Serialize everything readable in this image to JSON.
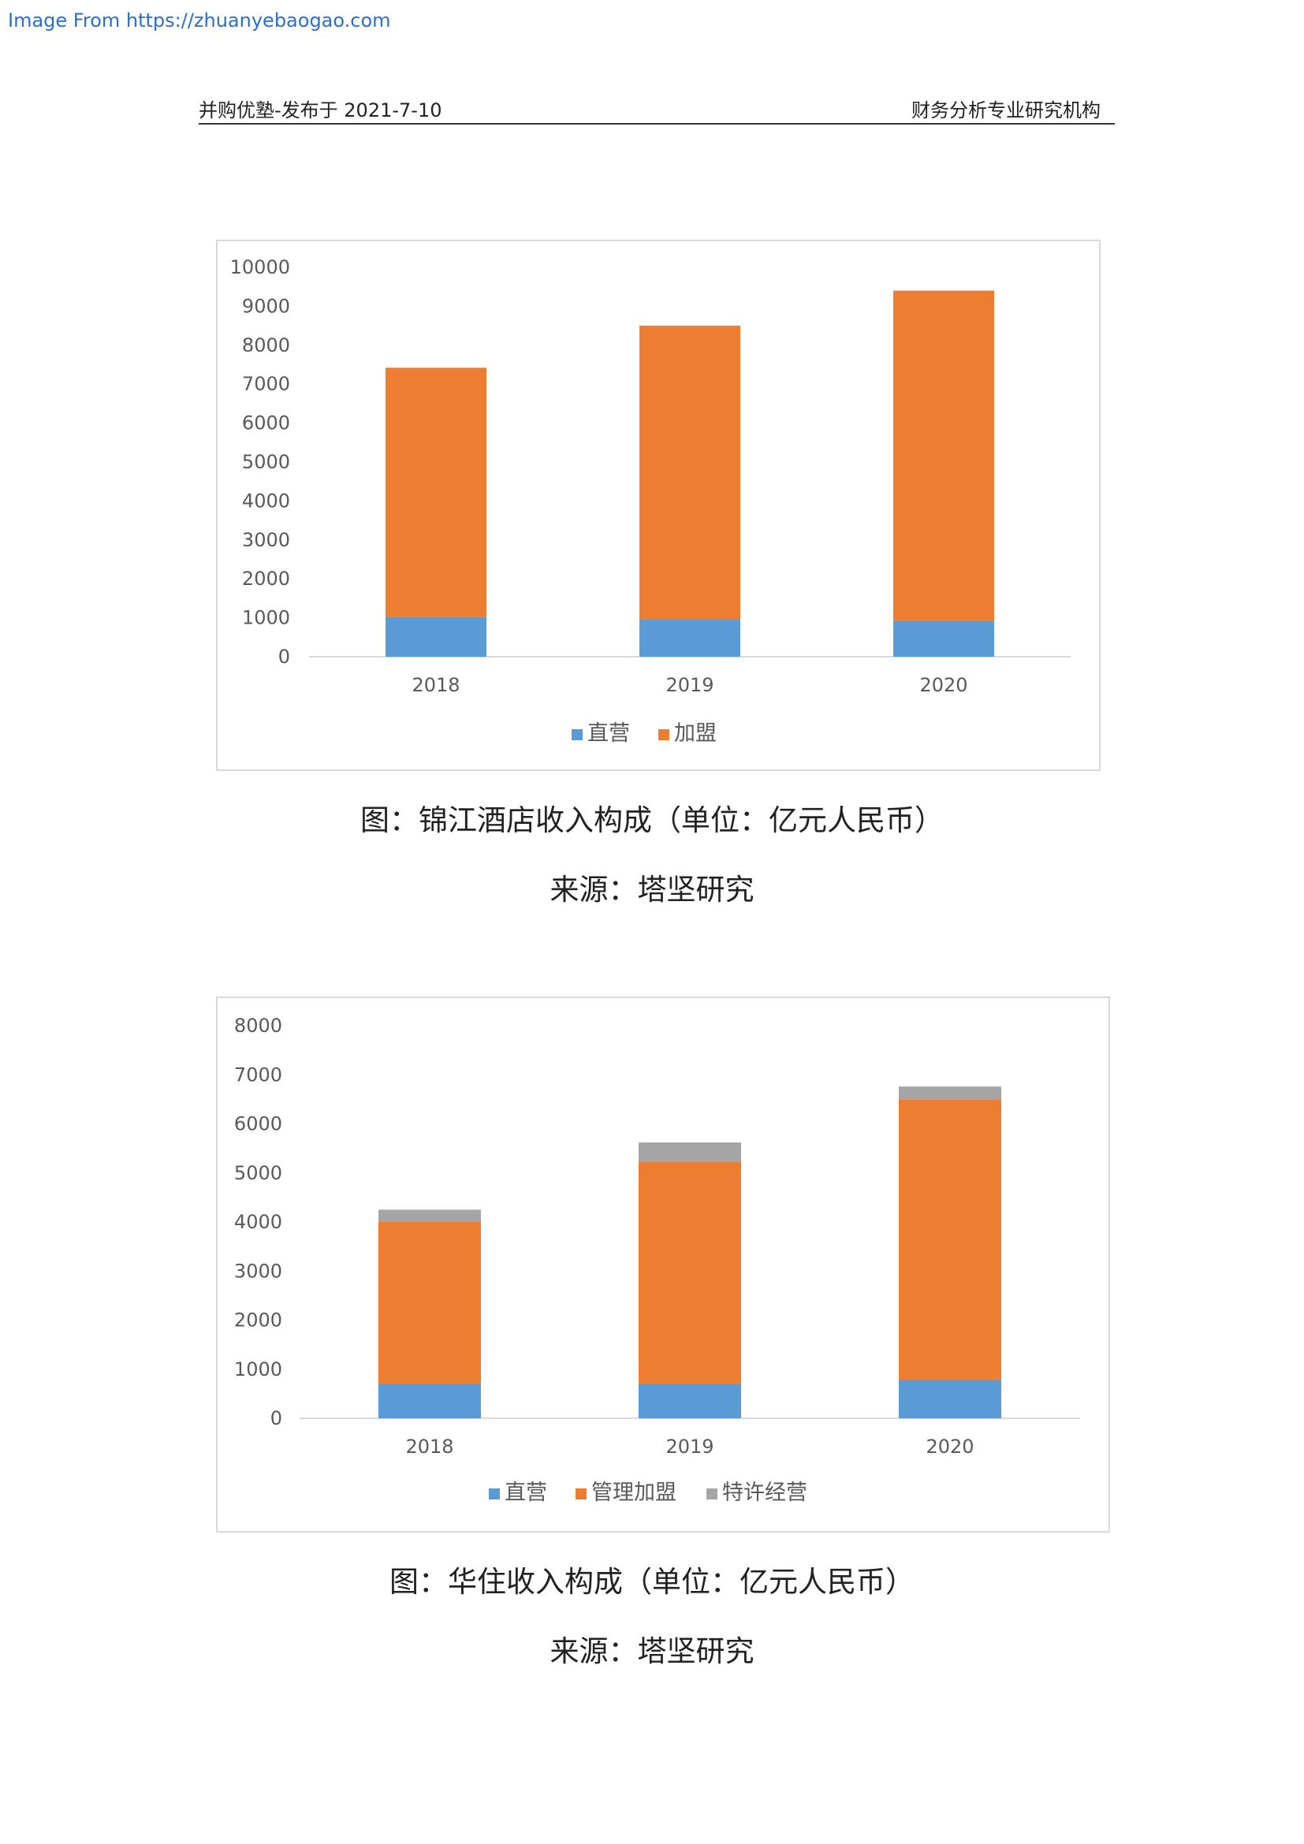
{
  "source_link": "Image From https://zhuanyebaogao.com",
  "header": {
    "left": "并购优塾-发布于 2021-7-10",
    "right": "财务分析专业研究机构"
  },
  "charts": [
    {
      "caption": "图：锦江酒店收入构成（单位：亿元人民币）",
      "source": "来源：塔坚研究"
    },
    {
      "caption": "图：华住收入构成（单位：亿元人民币）",
      "source": "来源：塔坚研究"
    }
  ],
  "chart_data": [
    {
      "type": "bar",
      "stacked": true,
      "categories": [
        "2018",
        "2019",
        "2020"
      ],
      "series": [
        {
          "name": "直营",
          "values": [
            1020,
            970,
            920
          ],
          "color": "#5b9bd5"
        },
        {
          "name": "加盟",
          "values": [
            6400,
            7530,
            8480
          ],
          "color": "#ed7d31"
        }
      ],
      "ylim": [
        0,
        10000
      ],
      "yticks": [
        0,
        1000,
        2000,
        3000,
        4000,
        5000,
        6000,
        7000,
        8000,
        9000,
        10000
      ],
      "legend": "bottom",
      "grid": false
    },
    {
      "type": "bar",
      "stacked": true,
      "categories": [
        "2018",
        "2019",
        "2020"
      ],
      "series": [
        {
          "name": "直营",
          "values": [
            700,
            700,
            780
          ],
          "color": "#5b9bd5"
        },
        {
          "name": "管理加盟",
          "values": [
            3300,
            4520,
            5720
          ],
          "color": "#ed7d31"
        },
        {
          "name": "特许经营",
          "values": [
            250,
            400,
            260
          ],
          "color": "#a5a5a5"
        }
      ],
      "ylim": [
        0,
        8000
      ],
      "yticks": [
        0,
        1000,
        2000,
        3000,
        4000,
        5000,
        6000,
        7000,
        8000
      ],
      "legend": "bottom",
      "grid": false
    }
  ]
}
